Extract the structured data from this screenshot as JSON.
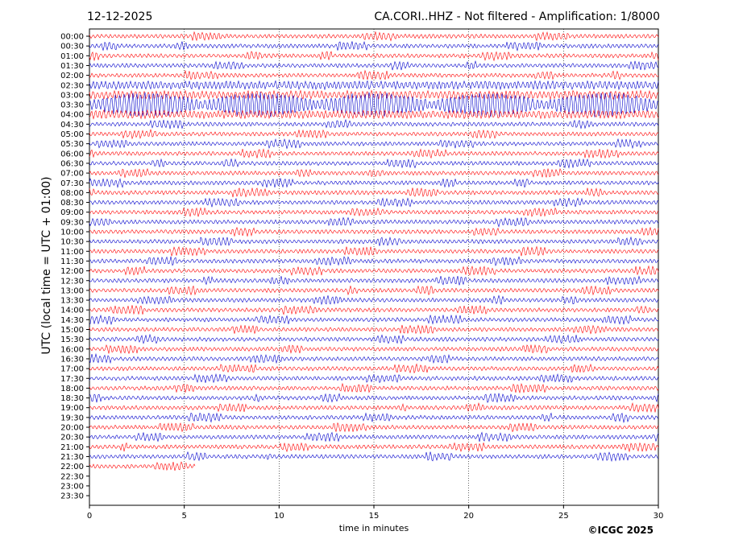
{
  "header": {
    "date": "12-12-2025",
    "station_info": "CA.CORI..HHZ - Not filtered - Amplification: 1/8000"
  },
  "copyright": "©ICGC 2025",
  "colors": {
    "odd_trace": "#ff0000",
    "even_trace": "#0000cc",
    "axis": "#000000"
  },
  "chart_data": {
    "type": "line",
    "subtype": "helicorder",
    "xlabel": "time in minutes",
    "ylabel": "UTC (local time = UTC + 01:00)",
    "xlim": [
      0,
      30
    ],
    "x_ticks": [
      "0",
      "5",
      "10",
      "15",
      "20",
      "25",
      "30"
    ],
    "grid": "vertical dotted lines at 5, 10, 15, 20, 25 minutes",
    "rows": [
      "00:00",
      "00:30",
      "01:00",
      "01:30",
      "02:00",
      "02:30",
      "03:00",
      "03:30",
      "04:00",
      "04:30",
      "05:00",
      "05:30",
      "06:00",
      "06:30",
      "07:00",
      "07:30",
      "08:00",
      "08:30",
      "09:00",
      "09:30",
      "10:00",
      "10:30",
      "11:00",
      "11:30",
      "12:00",
      "12:30",
      "13:00",
      "13:30",
      "14:00",
      "14:30",
      "15:00",
      "15:30",
      "16:00",
      "16:30",
      "17:00",
      "17:30",
      "18:00",
      "18:30",
      "19:00",
      "19:30",
      "20:00",
      "20:30",
      "21:00",
      "21:30",
      "22:00",
      "22:30",
      "23:00",
      "23:30"
    ],
    "recorded_rows": 45,
    "last_row_end_minutes": 5.6,
    "series_colors": "alternating red / blue per row",
    "events": [
      {
        "row": "02:30",
        "x_start": 0,
        "x_end": 30,
        "level": "moderate"
      },
      {
        "row": "03:00",
        "x_start": 0,
        "x_end": 30,
        "level": "moderate"
      },
      {
        "row": "03:30",
        "x_start": 0,
        "x_end": 30,
        "level": "large"
      },
      {
        "row": "04:00",
        "x_start": 0,
        "x_end": 30,
        "level": "moderate"
      }
    ]
  }
}
